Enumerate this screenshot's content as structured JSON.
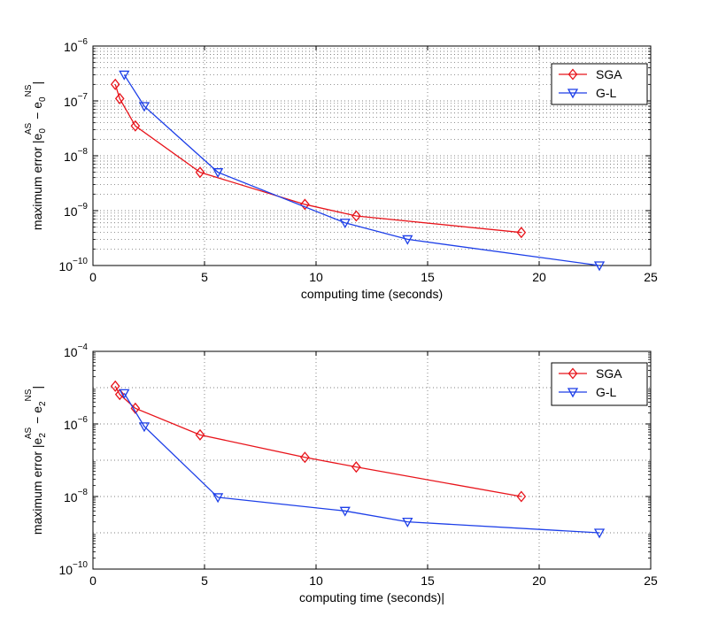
{
  "chart_data": [
    {
      "type": "line",
      "yscale": "log",
      "title": "",
      "xlabel": "computing time (seconds)",
      "ylabel": {
        "base": "maximum error |e",
        "sub1": "0",
        "sup1": "AS",
        "mid": " − e",
        "sub2": "0",
        "sup2": "NS",
        "end": "|"
      },
      "xlim": [
        0,
        25
      ],
      "ylim": [
        1e-10,
        1e-06
      ],
      "xticks": [
        0,
        5,
        10,
        15,
        20,
        25
      ],
      "xtick_labels": [
        "0",
        "5",
        "10",
        "15",
        "20",
        "25"
      ],
      "yticks": [
        {
          "value": 1e-10,
          "base": "10",
          "exp": "−10"
        },
        {
          "value": 1e-09,
          "base": "10",
          "exp": "−9"
        },
        {
          "value": 1e-08,
          "base": "10",
          "exp": "−8"
        },
        {
          "value": 1e-07,
          "base": "10",
          "exp": "−7"
        },
        {
          "value": 1e-06,
          "base": "10",
          "exp": "−6"
        }
      ],
      "grid": "major-and-minor",
      "legend": "top-right",
      "series": [
        {
          "name": "SGA",
          "color": "#e8141b",
          "marker": "diamond",
          "x": [
            1.0,
            1.2,
            1.9,
            4.8,
            9.5,
            11.8,
            19.2
          ],
          "y": [
            2e-07,
            1.1e-07,
            3.5e-08,
            5e-09,
            1.3e-09,
            8e-10,
            4e-10
          ]
        },
        {
          "name": "G-L",
          "color": "#1d3fe8",
          "marker": "triangle-down",
          "x": [
            1.4,
            2.3,
            5.6,
            11.3,
            14.1,
            22.7
          ],
          "y": [
            3e-07,
            8e-08,
            5e-09,
            6e-10,
            3e-10,
            1e-10
          ]
        }
      ]
    },
    {
      "type": "line",
      "yscale": "log",
      "title": "",
      "xlabel": "computing time (seconds)|",
      "ylabel": {
        "base": "maximum error |e",
        "sub1": "2",
        "sup1": "AS",
        "mid": " − e",
        "sub2": "2",
        "sup2": "NS",
        "end": "|"
      },
      "xlim": [
        0,
        25
      ],
      "ylim": [
        1e-10,
        0.0001
      ],
      "xticks": [
        0,
        5,
        10,
        15,
        20,
        25
      ],
      "xtick_labels": [
        "0",
        "5",
        "10",
        "15",
        "20",
        "25"
      ],
      "yticks": [
        {
          "value": 1e-10,
          "base": "10",
          "exp": "−10"
        },
        {
          "value": 1e-08,
          "base": "10",
          "exp": "−8"
        },
        {
          "value": 1e-06,
          "base": "10",
          "exp": "−6"
        },
        {
          "value": 0.0001,
          "base": "10",
          "exp": "−4"
        }
      ],
      "grid": "major",
      "legend": "top-right",
      "series": [
        {
          "name": "SGA",
          "color": "#e8141b",
          "marker": "diamond",
          "x": [
            1.0,
            1.2,
            1.9,
            4.8,
            9.5,
            11.8,
            19.2
          ],
          "y": [
            1.1e-05,
            6.5e-06,
            2.7e-06,
            5e-07,
            1.2e-07,
            6.5e-08,
            1e-08
          ]
        },
        {
          "name": "G-L",
          "color": "#1d3fe8",
          "marker": "triangle-down",
          "x": [
            1.4,
            2.3,
            5.6,
            11.3,
            14.1,
            22.7
          ],
          "y": [
            7e-06,
            8.5e-07,
            9.5e-09,
            4e-09,
            2e-09,
            1e-09
          ]
        }
      ]
    }
  ]
}
